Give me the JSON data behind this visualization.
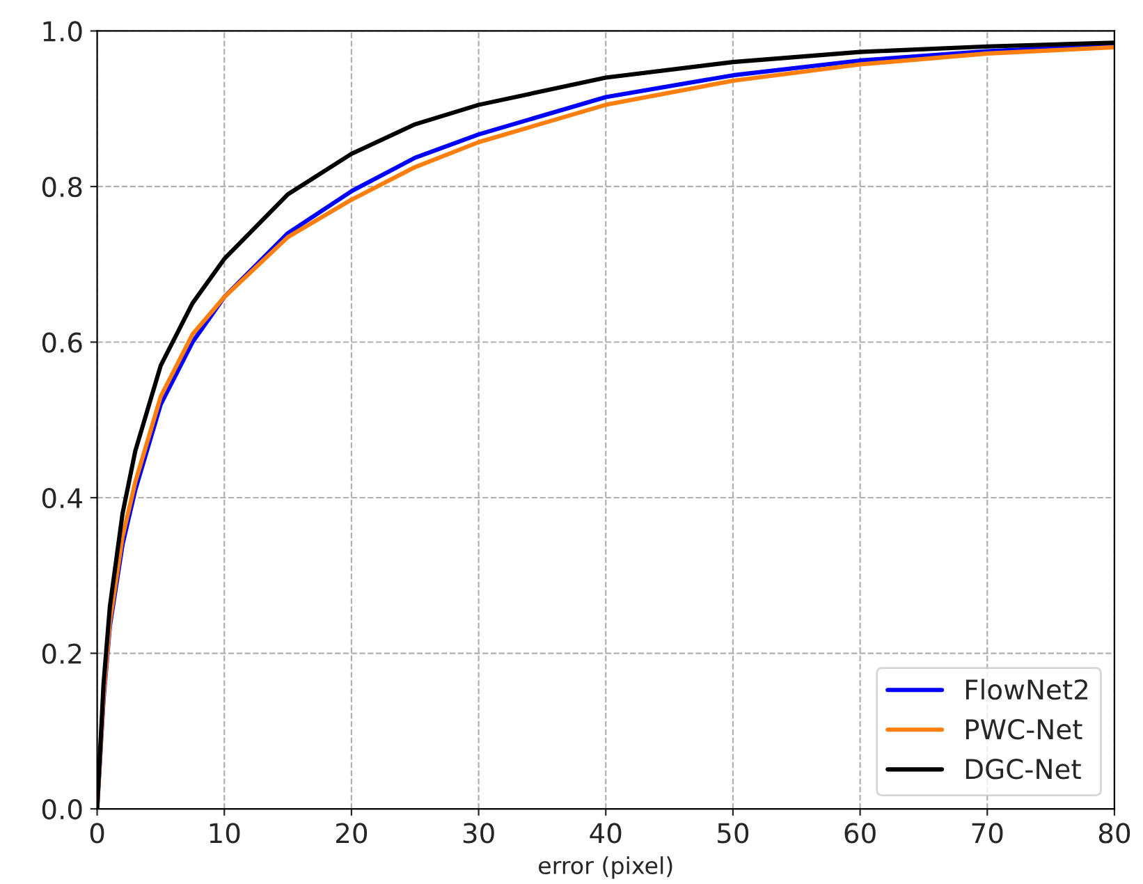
{
  "chart_data": {
    "type": "line",
    "xlabel": "error (pixel)",
    "x": [
      0,
      0.5,
      1,
      2,
      3,
      5,
      7.5,
      10,
      15,
      20,
      25,
      30,
      40,
      50,
      60,
      70,
      80
    ],
    "series": [
      {
        "name": "FlowNet2",
        "color": "#0000ff",
        "values": [
          0,
          0.14,
          0.235,
          0.34,
          0.41,
          0.52,
          0.6,
          0.658,
          0.74,
          0.794,
          0.837,
          0.867,
          0.915,
          0.943,
          0.962,
          0.974,
          0.982
        ]
      },
      {
        "name": "PWC-Net",
        "color": "#ff7f0e",
        "values": [
          0,
          0.145,
          0.24,
          0.35,
          0.42,
          0.53,
          0.61,
          0.658,
          0.735,
          0.783,
          0.825,
          0.857,
          0.905,
          0.936,
          0.957,
          0.971,
          0.979
        ]
      },
      {
        "name": "DGC-Net",
        "color": "#000000",
        "values": [
          0,
          0.16,
          0.26,
          0.38,
          0.46,
          0.57,
          0.65,
          0.707,
          0.79,
          0.842,
          0.88,
          0.905,
          0.94,
          0.96,
          0.973,
          0.98,
          0.985
        ]
      }
    ],
    "xlim": [
      0,
      80
    ],
    "xticks": [
      0,
      10,
      20,
      30,
      40,
      50,
      60,
      70,
      80
    ],
    "ylim": [
      0,
      1.0
    ],
    "yticks": [
      {
        "value": 0,
        "label": "0.0"
      },
      {
        "value": 0.2,
        "label": "0.2"
      },
      {
        "value": 0.4,
        "label": "0.4"
      },
      {
        "value": 0.6,
        "label": "0.6"
      },
      {
        "value": 0.8,
        "label": "0.8"
      },
      {
        "value": 1.0,
        "label": "1.0"
      }
    ],
    "grid": true,
    "legend": "bottom right",
    "line_style": "solid"
  }
}
